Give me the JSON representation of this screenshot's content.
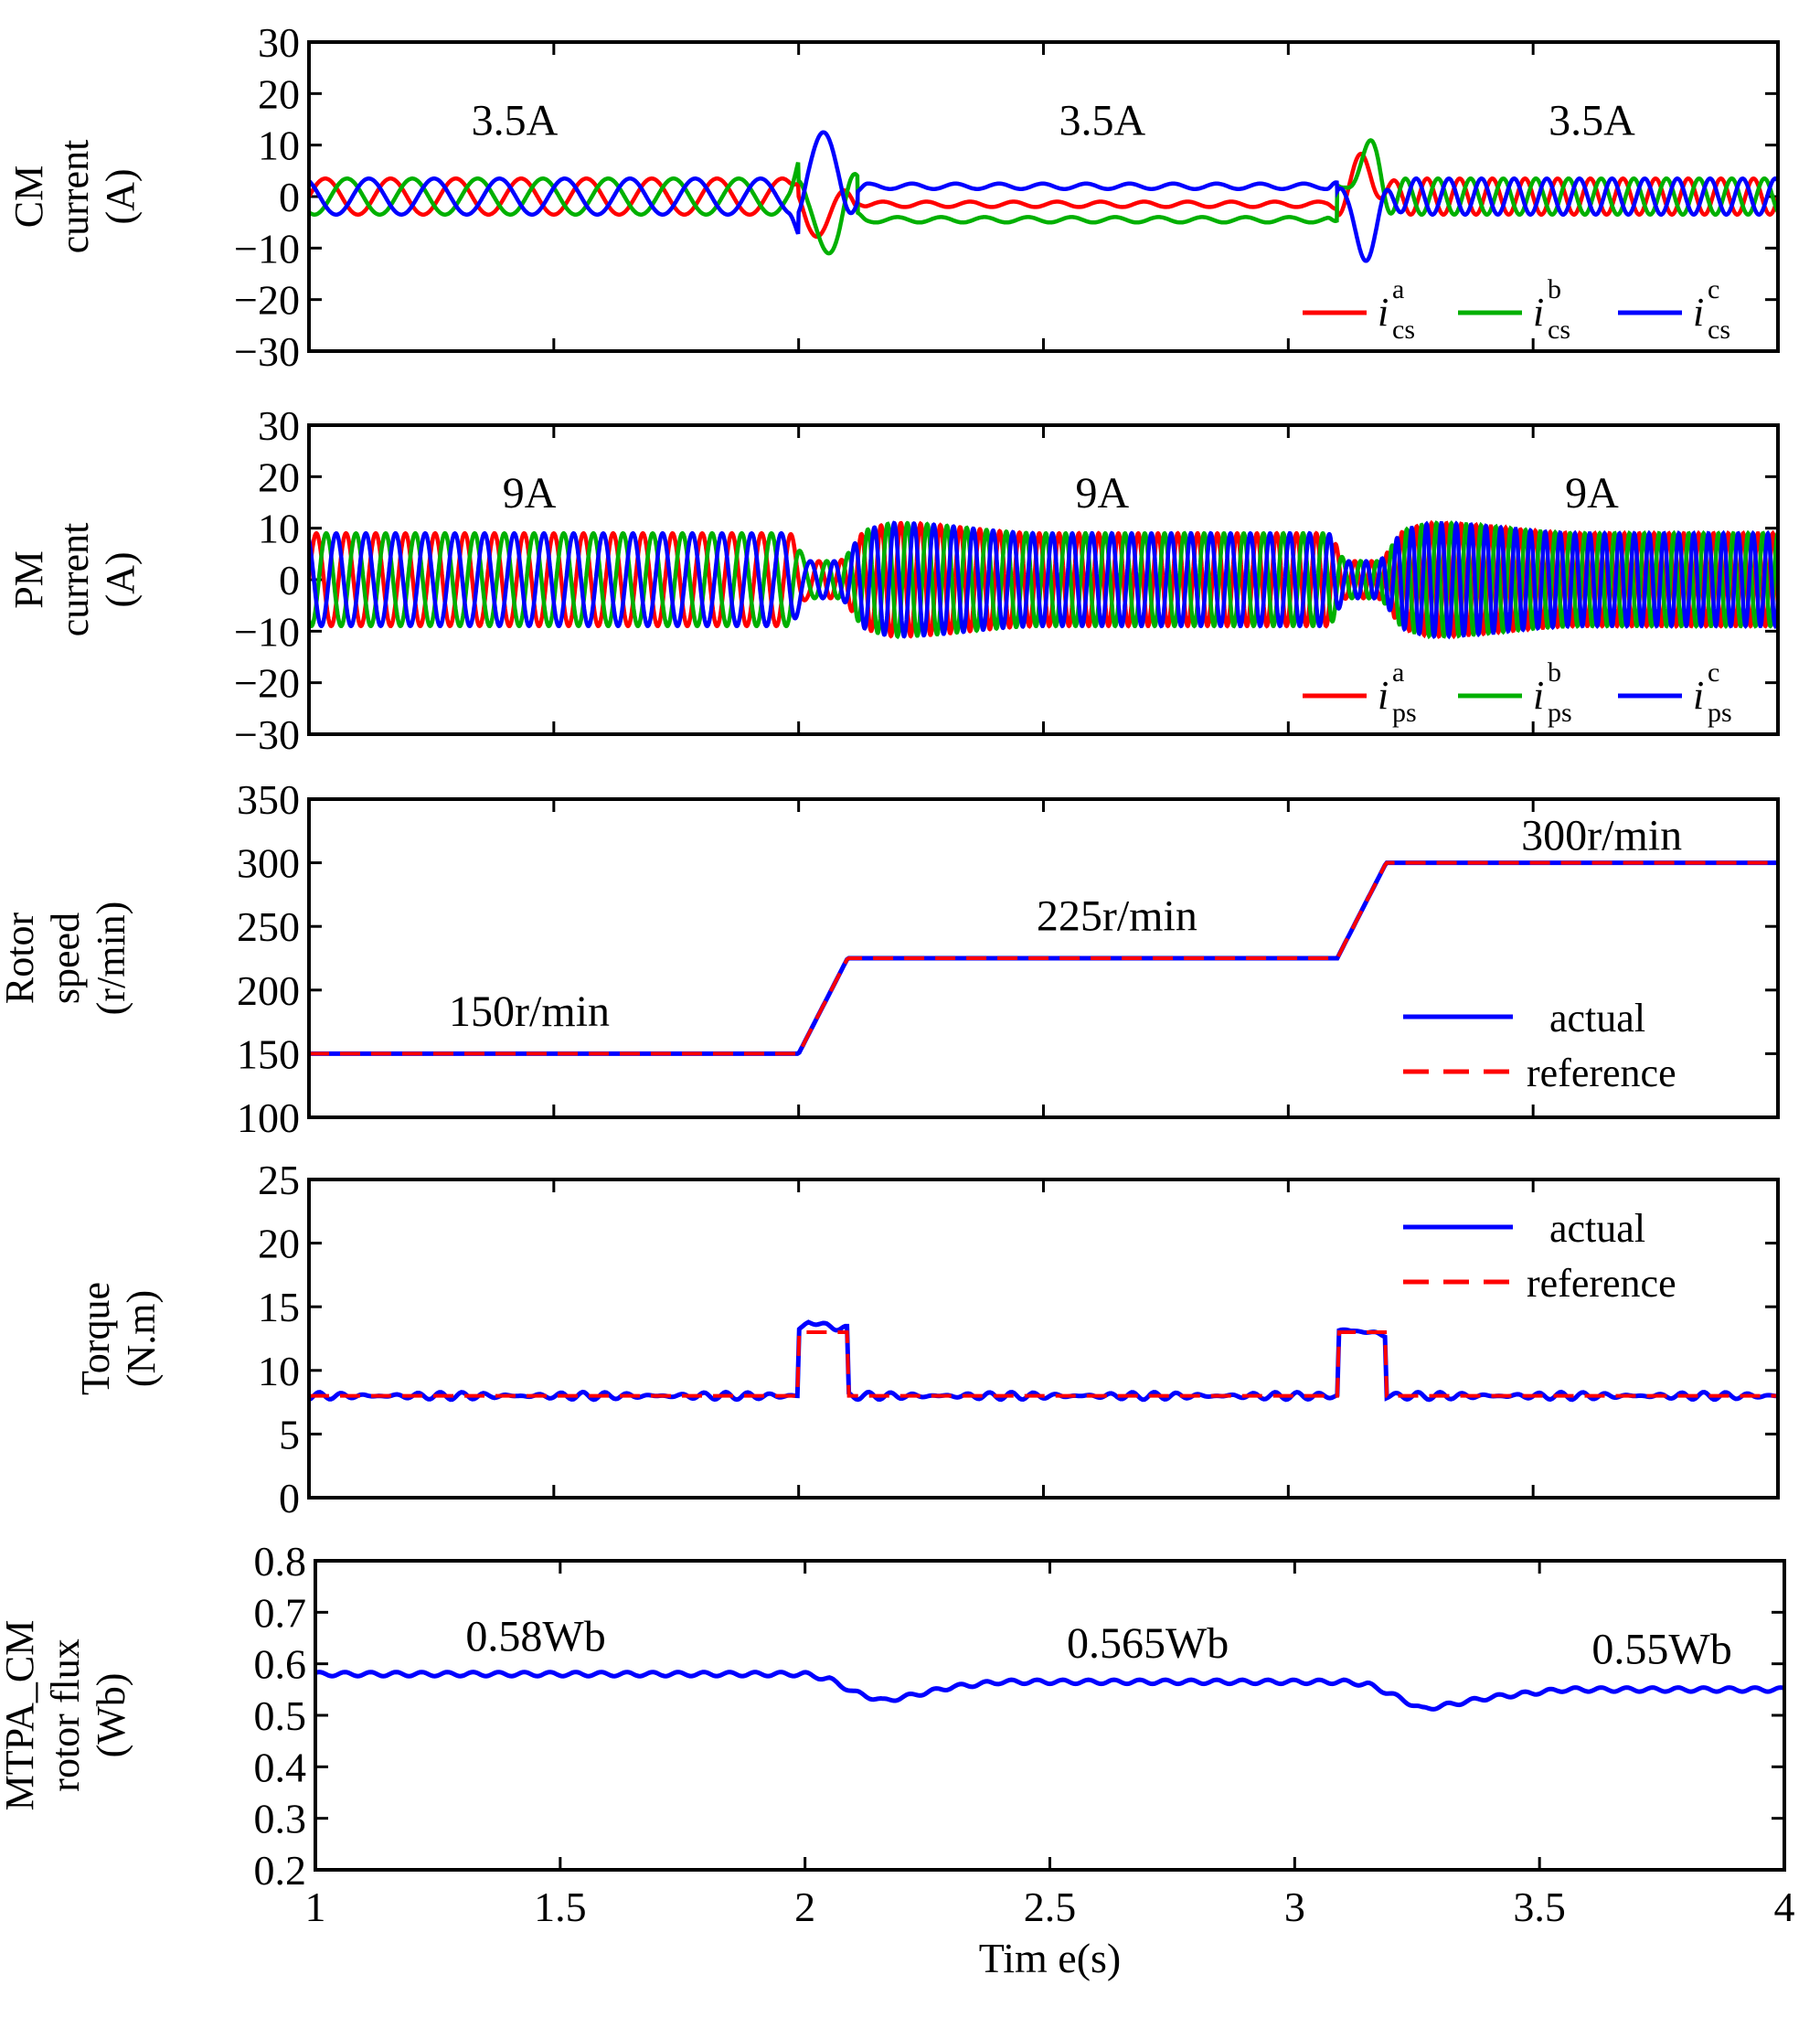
{
  "chart_data": [
    {
      "type": "line",
      "ylabel": [
        "CM",
        "current",
        "(A)"
      ],
      "xlim": [
        1,
        4
      ],
      "ylim": [
        -30,
        30
      ],
      "yticks": [
        "30",
        "20",
        "10",
        "0",
        "−10",
        "−20",
        "−30"
      ],
      "ytick_values": [
        30,
        20,
        10,
        0,
        -10,
        -20,
        -30
      ],
      "annotations": [
        {
          "text": "3.5A",
          "x": 1.42,
          "y": 12
        },
        {
          "text": "3.5A",
          "x": 2.62,
          "y": 12
        },
        {
          "text": "3.5A",
          "x": 3.62,
          "y": 12
        }
      ],
      "legend": [
        {
          "name": "i",
          "sup": "a",
          "sub": "cs",
          "color": "#ff0000"
        },
        {
          "name": "i",
          "sup": "b",
          "sub": "cs",
          "color": "#00b000"
        },
        {
          "name": "i",
          "sup": "c",
          "sub": "cs",
          "color": "#0000ff"
        }
      ],
      "legend_position": "bottom-right",
      "series": [
        {
          "name": "ica",
          "color": "#ff0000",
          "amplitude": 3.5,
          "phase_deg": 0
        },
        {
          "name": "icb",
          "color": "#00b000",
          "amplitude": 3.5,
          "phase_deg": -120
        },
        {
          "name": "icc",
          "color": "#0000ff",
          "amplitude": 3.5,
          "phase_deg": 120
        }
      ]
    },
    {
      "type": "line",
      "ylabel": [
        "PM",
        "current",
        "(A)"
      ],
      "xlim": [
        1,
        4
      ],
      "ylim": [
        -30,
        30
      ],
      "yticks": [
        "30",
        "20",
        "10",
        "0",
        "−10",
        "−20",
        "−30"
      ],
      "ytick_values": [
        30,
        20,
        10,
        0,
        -10,
        -20,
        -30
      ],
      "annotations": [
        {
          "text": "9A",
          "x": 1.45,
          "y": 14
        },
        {
          "text": "9A",
          "x": 2.62,
          "y": 14
        },
        {
          "text": "9A",
          "x": 3.62,
          "y": 14
        }
      ],
      "legend": [
        {
          "name": "i",
          "sup": "a",
          "sub": "ps",
          "color": "#ff0000"
        },
        {
          "name": "i",
          "sup": "b",
          "sub": "ps",
          "color": "#00b000"
        },
        {
          "name": "i",
          "sup": "c",
          "sub": "ps",
          "color": "#0000ff"
        }
      ],
      "legend_position": "bottom-right",
      "series": [
        {
          "name": "ipa",
          "color": "#ff0000",
          "amplitude": 9,
          "phase_deg": 0
        },
        {
          "name": "ipb",
          "color": "#00b000",
          "amplitude": 9,
          "phase_deg": -120
        },
        {
          "name": "ipc",
          "color": "#0000ff",
          "amplitude": 9,
          "phase_deg": 120
        }
      ]
    },
    {
      "type": "line",
      "ylabel": [
        "Rotor",
        "speed",
        "(r/min)"
      ],
      "xlim": [
        1,
        4
      ],
      "ylim": [
        100,
        350
      ],
      "yticks": [
        "350",
        "300",
        "250",
        "200",
        "150",
        "100"
      ],
      "ytick_values": [
        350,
        300,
        250,
        200,
        150,
        100
      ],
      "annotations": [
        {
          "text": "150r/min",
          "x": 1.45,
          "y": 172
        },
        {
          "text": "225r/min",
          "x": 2.65,
          "y": 247
        },
        {
          "text": "300r/min",
          "x": 3.64,
          "y": 310
        }
      ],
      "legend": [
        {
          "name": "actual",
          "color": "#0000ff",
          "style": "solid"
        },
        {
          "name": "reference",
          "color": "#ff0000",
          "style": "dashed"
        }
      ],
      "legend_position": "bottom-right",
      "series": [
        {
          "name": "actual",
          "color": "#0000ff",
          "style": "solid",
          "x": [
            1,
            2,
            2.1,
            3.1,
            3.2,
            4
          ],
          "y": [
            150,
            150,
            225,
            225,
            300,
            300
          ]
        },
        {
          "name": "reference",
          "color": "#ff0000",
          "style": "dashed",
          "x": [
            1,
            2,
            2.1,
            3.1,
            3.2,
            4
          ],
          "y": [
            150,
            150,
            225,
            225,
            300,
            300
          ]
        }
      ]
    },
    {
      "type": "line",
      "ylabel": [
        "Torque",
        "(N.m)"
      ],
      "xlim": [
        1,
        4
      ],
      "ylim": [
        0,
        25
      ],
      "yticks": [
        "25",
        "20",
        "15",
        "10",
        "5",
        "0"
      ],
      "ytick_values": [
        25,
        20,
        15,
        10,
        5,
        0
      ],
      "annotations": [],
      "legend": [
        {
          "name": "actual",
          "color": "#0000ff",
          "style": "solid"
        },
        {
          "name": "reference",
          "color": "#ff0000",
          "style": "dashed"
        }
      ],
      "legend_position": "top-right",
      "series": [
        {
          "name": "actual",
          "color": "#0000ff",
          "style": "solid",
          "x": [
            1,
            2,
            2.0,
            2.02,
            2.1,
            2.1,
            3.1,
            3.1,
            3.12,
            3.2,
            3.2,
            4
          ],
          "y": [
            8,
            8,
            13.2,
            13.8,
            13.2,
            8,
            8,
            13,
            13.2,
            12.8,
            8,
            8
          ]
        },
        {
          "name": "reference",
          "color": "#ff0000",
          "style": "dashed",
          "x": [
            1,
            2,
            2.0,
            2.1,
            2.1,
            3.1,
            3.1,
            3.2,
            3.2,
            4
          ],
          "y": [
            8,
            8,
            13,
            13,
            8,
            8,
            13,
            13,
            8,
            8
          ]
        }
      ]
    },
    {
      "type": "line",
      "ylabel": [
        "MTPA_CM",
        "rotor flux",
        "(Wb)"
      ],
      "xlim": [
        1,
        4
      ],
      "ylim": [
        0.2,
        0.8
      ],
      "yticks": [
        "0.8",
        "0.7",
        "0.6",
        "0.5",
        "0.4",
        "0.3",
        "0.2"
      ],
      "ytick_values": [
        0.8,
        0.7,
        0.6,
        0.5,
        0.4,
        0.3,
        0.2
      ],
      "xticks": [
        "1",
        "1.5",
        "2",
        "2.5",
        "3",
        "3.5",
        "4"
      ],
      "xtick_values": [
        1,
        1.5,
        2,
        2.5,
        3,
        3.5,
        4
      ],
      "xlabel": "Tim e(s)",
      "annotations": [
        {
          "text": "0.58Wb",
          "x": 1.45,
          "y": 0.625
        },
        {
          "text": "0.565Wb",
          "x": 2.7,
          "y": 0.612
        },
        {
          "text": "0.55Wb",
          "x": 3.75,
          "y": 0.6
        }
      ],
      "legend": [],
      "series": [
        {
          "name": "flux",
          "color": "#0000ff",
          "style": "solid",
          "x": [
            1,
            2.0,
            2.05,
            2.1,
            2.16,
            2.2,
            2.3,
            2.4,
            3.1,
            3.15,
            3.2,
            3.26,
            3.3,
            3.4,
            3.55,
            4
          ],
          "y": [
            0.58,
            0.58,
            0.57,
            0.545,
            0.528,
            0.535,
            0.555,
            0.565,
            0.565,
            0.56,
            0.54,
            0.512,
            0.518,
            0.535,
            0.55,
            0.55
          ]
        }
      ]
    }
  ]
}
